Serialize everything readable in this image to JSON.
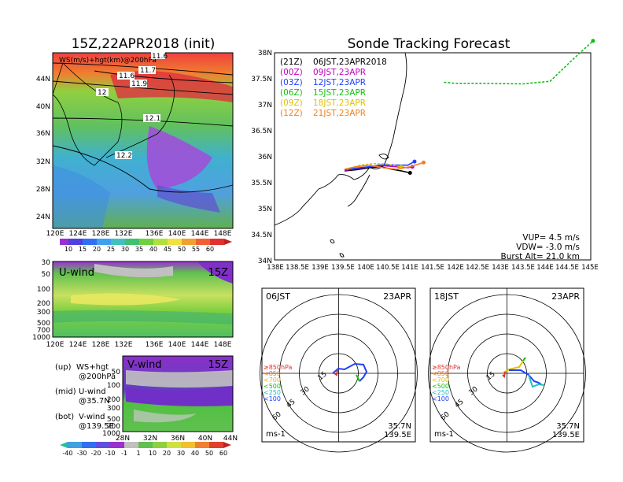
{
  "left_panel": {
    "title": "15Z,22APR2018 (init)",
    "map_label": "WS(m/s)+hgt(km)@200hPa",
    "contour_labels": [
      "11.6",
      "11.7",
      "11.6",
      "11.9",
      "12",
      "12.1",
      "12.2"
    ],
    "lon_ticks": [
      "120E",
      "124E",
      "128E",
      "132E",
      "136E",
      "140E",
      "144E",
      "148E"
    ],
    "lat_ticks": [
      "44N",
      "40N",
      "36N",
      "32N",
      "28N",
      "24N"
    ],
    "colorbar_ticks": [
      "10",
      "15",
      "20",
      "25",
      "30",
      "35",
      "40",
      "45",
      "50",
      "55",
      "60"
    ],
    "u_wind": {
      "label": "U-wind",
      "time": "15Z",
      "p_ticks": [
        "30",
        "50",
        "100",
        "200",
        "300",
        "500",
        "700",
        "1000"
      ]
    },
    "v_wind": {
      "label": "V-wind",
      "time": "15Z",
      "p_ticks": [
        "50",
        "100",
        "200",
        "300",
        "500",
        "700",
        "1000"
      ],
      "lat_ticks": [
        "28N",
        "32N",
        "36N",
        "40N",
        "44N"
      ]
    },
    "legend": [
      {
        "tag": "(up)",
        "text": "WS+hgt",
        "sub": "@200hPa"
      },
      {
        "tag": "(mid)",
        "text": "U-wind",
        "sub": "@35.7N"
      },
      {
        "tag": "(bot)",
        "text": "V-wind",
        "sub": "@139.5E"
      }
    ],
    "div_colorbar_ticks": [
      "-40",
      "-30",
      "-20",
      "-10",
      "-1",
      "1",
      "10",
      "20",
      "30",
      "40",
      "50",
      "60"
    ]
  },
  "right_panel": {
    "title": "Sonde Tracking Forecast",
    "legend": [
      {
        "utc": "(21Z)",
        "jst": "06JST,23APR2018",
        "color": "#000000"
      },
      {
        "utc": "(00Z)",
        "jst": "09JST,23APR",
        "color": "#c000c0"
      },
      {
        "utc": "(03Z)",
        "jst": "12JST,23APR",
        "color": "#2040ff"
      },
      {
        "utc": "(06Z)",
        "jst": "15JST,23APR",
        "color": "#10c010"
      },
      {
        "utc": "(09Z)",
        "jst": "18JST,23APR",
        "color": "#e0c000"
      },
      {
        "utc": "(12Z)",
        "jst": "21JST,23APR",
        "color": "#f08020"
      }
    ],
    "params": [
      "VUP= 4.5 m/s",
      "VDW= -3.0 m/s",
      "Burst Alt= 21.0 km"
    ],
    "lat_ticks": [
      "38N",
      "37.5N",
      "37N",
      "36.5N",
      "36N",
      "35.5N",
      "35N",
      "34.5N",
      "34N"
    ],
    "lon_ticks": [
      "138E",
      "138.5E",
      "139E",
      "139.5E",
      "140E",
      "140.5E",
      "141E",
      "141.5E",
      "142E",
      "142.5E",
      "143E",
      "143.5E",
      "144E",
      "144.5E",
      "145E"
    ]
  },
  "hodographs": [
    {
      "time": "06JST",
      "date": "23APR",
      "rings": [
        "15",
        "30",
        "45",
        "60"
      ],
      "unit": "ms-1",
      "lat": "35.7N",
      "lon": "139.5E",
      "levels": [
        "≥850hPa",
        "<850",
        "<700",
        "<500",
        "<250",
        "<100"
      ]
    },
    {
      "time": "18JST",
      "date": "23APR",
      "rings": [
        "15",
        "30",
        "45",
        "60"
      ],
      "unit": "ms-1",
      "lat": "35.7N",
      "lon": "139.5E",
      "levels": [
        "≥850hPa",
        "<850",
        "<700",
        "<500",
        "<250",
        "<100"
      ]
    }
  ],
  "chart_data": {
    "type": "line",
    "title": "Sonde Tracking Forecast",
    "xlim": [
      138,
      145
    ],
    "ylim": [
      34,
      38
    ],
    "series": [
      {
        "name": "06JST,23APR2018",
        "x": [
          139.55,
          139.8,
          140.1,
          140.35,
          140.6,
          140.8,
          141.0
        ],
        "y": [
          35.72,
          35.74,
          35.78,
          35.8,
          35.75,
          35.72,
          35.68
        ]
      },
      {
        "name": "09JST,23APR",
        "x": [
          139.55,
          139.8,
          140.1,
          140.4,
          140.7,
          140.95,
          141.05
        ],
        "y": [
          35.73,
          35.76,
          35.8,
          35.82,
          35.8,
          35.78,
          35.8
        ]
      },
      {
        "name": "12JST,23APR",
        "x": [
          139.55,
          139.8,
          140.1,
          140.4,
          140.7,
          140.95,
          141.1
        ],
        "y": [
          35.74,
          35.77,
          35.8,
          35.84,
          35.83,
          35.83,
          35.9
        ]
      },
      {
        "name": "15JST,23APR",
        "x": [
          141.75,
          142.0,
          142.3,
          142.5,
          143.5,
          144.1,
          144.4,
          144.7,
          145.05
        ],
        "y": [
          37.43,
          37.41,
          37.41,
          37.41,
          37.4,
          37.45,
          37.7,
          37.95,
          38.23
        ]
      },
      {
        "name": "18JST,23APR",
        "x": [
          139.6,
          139.9,
          140.2,
          140.5,
          140.8
        ],
        "y": [
          35.75,
          35.83,
          35.86,
          35.85,
          35.8
        ]
      },
      {
        "name": "21JST,23APR",
        "x": [
          139.55,
          139.8,
          140.1,
          140.4,
          140.7,
          141.0,
          141.3
        ],
        "y": [
          35.75,
          35.8,
          35.83,
          35.78,
          35.75,
          35.8,
          35.88
        ]
      }
    ]
  }
}
